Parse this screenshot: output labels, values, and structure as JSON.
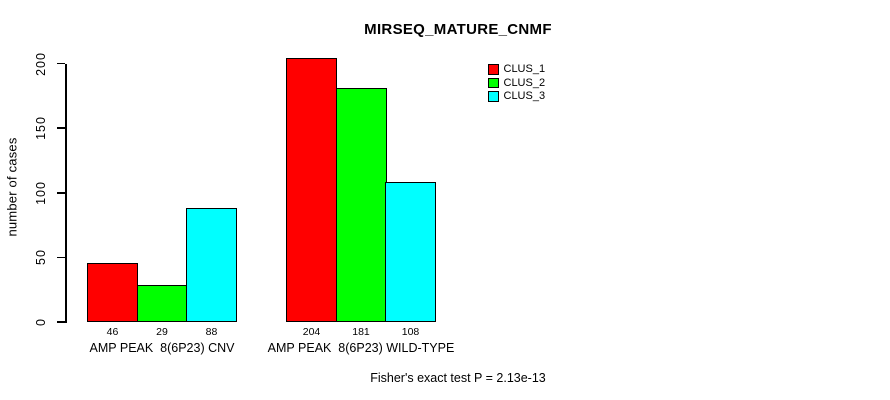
{
  "chart_data": {
    "type": "bar",
    "title": "MIRSEQ_MATURE_CNMF",
    "ylabel": "number of cases",
    "xlabel": "",
    "yticks": [
      0,
      50,
      100,
      150,
      200
    ],
    "ylim": [
      0,
      204
    ],
    "grid": false,
    "legend_position": "top-right",
    "bar_value_labels_shown": true,
    "categories": [
      "AMP PEAK  8(6P23) CNV",
      "AMP PEAK  8(6P23) WILD-TYPE"
    ],
    "series": [
      {
        "name": "CLUS_1",
        "color": "#ff0000",
        "values": [
          46,
          204
        ]
      },
      {
        "name": "CLUS_2",
        "color": "#00ff00",
        "values": [
          29,
          181
        ]
      },
      {
        "name": "CLUS_3",
        "color": "#00ffff",
        "values": [
          88,
          108
        ]
      }
    ],
    "annotation": "Fisher's exact test P = 2.13e-13"
  },
  "colors": {
    "axis": "#000000",
    "text": "#000000",
    "background": "#ffffff"
  }
}
